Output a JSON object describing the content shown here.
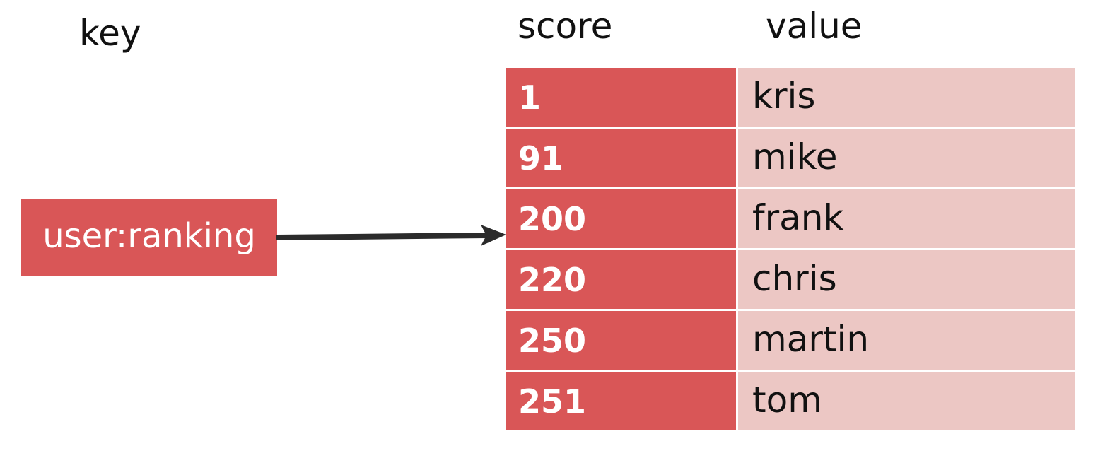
{
  "headers": {
    "key": "key",
    "score": "score",
    "value": "value"
  },
  "key_name": "user:ranking",
  "entries": [
    {
      "score": "1",
      "value": "kris"
    },
    {
      "score": "91",
      "value": "mike"
    },
    {
      "score": "200",
      "value": "frank"
    },
    {
      "score": "220",
      "value": "chris"
    },
    {
      "score": "250",
      "value": "martin"
    },
    {
      "score": "251",
      "value": "tom"
    }
  ],
  "colors": {
    "score_fill": "#d95657",
    "value_fill": "#ecc7c4",
    "arrow": "#2b2b2b"
  }
}
